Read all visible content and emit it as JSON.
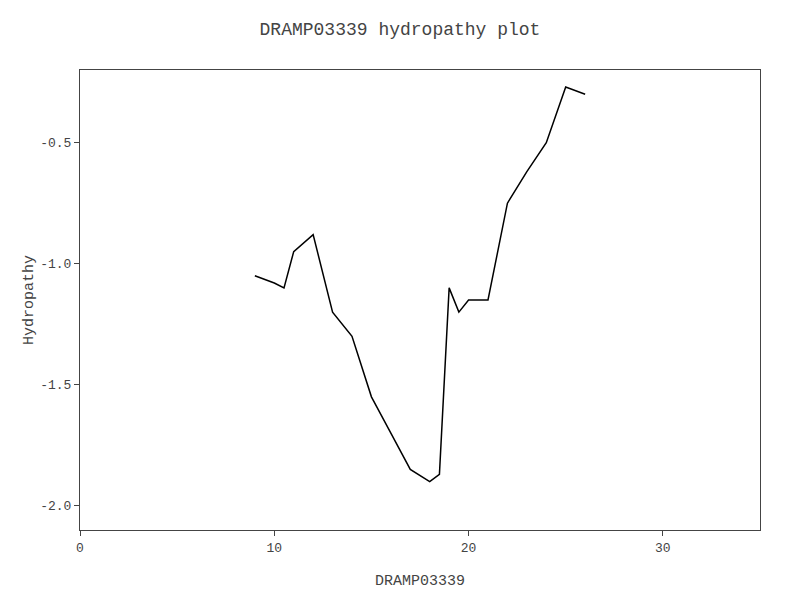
{
  "chart_data": {
    "type": "line",
    "title": "DRAMP03339 hydropathy plot",
    "xlabel": "DRAMP03339",
    "ylabel": "Hydropathy",
    "x": [
      9.0,
      10.0,
      10.5,
      11.0,
      12.0,
      13.0,
      14.0,
      15.0,
      16.0,
      17.0,
      18.0,
      18.5,
      19.0,
      19.5,
      20.0,
      21.0,
      22.0,
      23.0,
      24.0,
      25.0,
      26.0
    ],
    "values": [
      -1.05,
      -1.08,
      -1.1,
      -0.95,
      -0.88,
      -1.2,
      -1.3,
      -1.55,
      -1.7,
      -1.85,
      -1.9,
      -1.87,
      -1.1,
      -1.2,
      -1.15,
      -1.15,
      -0.75,
      -0.62,
      -0.5,
      -0.27,
      -0.3
    ],
    "color": "#000000",
    "xlim": [
      0,
      35
    ],
    "xticks": [
      0,
      10,
      20,
      30
    ],
    "ylim": [
      -2.1,
      -0.2
    ],
    "yticks": [
      {
        "value": -2.0,
        "label": "-2.0"
      },
      -1.5,
      {
        "value": -1.0,
        "label": "-1.0"
      },
      -0.5
    ],
    "grid": false
  }
}
